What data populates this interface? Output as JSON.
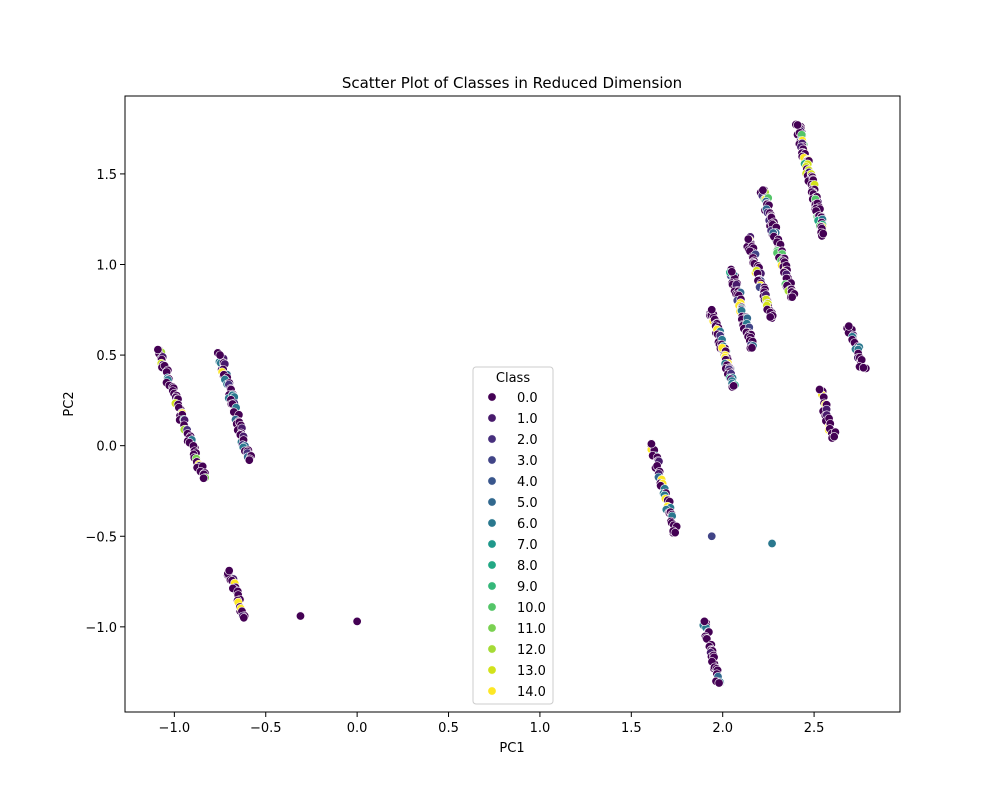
{
  "chart_data": {
    "type": "scatter",
    "title": "Scatter Plot of Classes in Reduced Dimension",
    "xlabel": "PC1",
    "ylabel": "PC2",
    "xlim": [
      -1.27,
      2.97
    ],
    "ylim": [
      -1.47,
      1.93
    ],
    "x_ticks": [
      -1.0,
      -0.5,
      0.0,
      0.5,
      1.0,
      1.5,
      2.0,
      2.5
    ],
    "x_tick_labels": [
      "−1.0",
      "−0.5",
      "0.0",
      "0.5",
      "1.0",
      "1.5",
      "2.0",
      "2.5"
    ],
    "y_ticks": [
      -1.0,
      -0.5,
      0.0,
      0.5,
      1.0,
      1.5
    ],
    "y_tick_labels": [
      "−1.0",
      "−0.5",
      "0.0",
      "0.5",
      "1.0",
      "1.5"
    ],
    "grid": false,
    "legend": {
      "title": "Class",
      "placement": "lower-center",
      "entries": [
        "0.0",
        "1.0",
        "2.0",
        "3.0",
        "4.0",
        "5.0",
        "6.0",
        "7.0",
        "8.0",
        "9.0",
        "10.0",
        "11.0",
        "12.0",
        "13.0",
        "14.0"
      ]
    },
    "palette": [
      "#440154",
      "#481a6c",
      "#472f7d",
      "#414487",
      "#39568c",
      "#31688e",
      "#2a788e",
      "#23888e",
      "#1f988b",
      "#22a884",
      "#35b779",
      "#54c568",
      "#7ad151",
      "#a5db36",
      "#d2e21b",
      "#fde725"
    ],
    "marker_edge_color": "#ffffff",
    "clusters": [
      {
        "x0": -1.09,
        "y0": 0.53,
        "x1": -0.84,
        "y1": -0.18,
        "classes": [
          0,
          1,
          2,
          6,
          7,
          11,
          12,
          13,
          14
        ],
        "n": 70
      },
      {
        "x0": -0.75,
        "y0": 0.5,
        "x1": -0.59,
        "y1": -0.08,
        "classes": [
          0,
          1,
          2,
          5,
          6,
          14
        ],
        "n": 60
      },
      {
        "x0": -0.7,
        "y0": -0.69,
        "x1": -0.62,
        "y1": -0.95,
        "classes": [
          0,
          1,
          6,
          14
        ],
        "n": 22
      },
      {
        "x0": 1.61,
        "y0": 0.01,
        "x1": 1.74,
        "y1": -0.48,
        "classes": [
          0,
          1,
          5,
          6,
          14
        ],
        "n": 45
      },
      {
        "x0": 1.9,
        "y0": -0.97,
        "x1": 1.98,
        "y1": -1.31,
        "classes": [
          0,
          1,
          5,
          6
        ],
        "n": 30
      },
      {
        "x0": 1.94,
        "y0": 0.75,
        "x1": 2.06,
        "y1": 0.33,
        "classes": [
          0,
          1,
          2,
          6,
          8,
          14
        ],
        "n": 70
      },
      {
        "x0": 2.05,
        "y0": 0.96,
        "x1": 2.16,
        "y1": 0.54,
        "classes": [
          0,
          1,
          3,
          5,
          6,
          8,
          14
        ],
        "n": 60
      },
      {
        "x0": 2.14,
        "y0": 1.14,
        "x1": 2.26,
        "y1": 0.71,
        "classes": [
          0,
          1,
          3,
          13,
          14
        ],
        "n": 60
      },
      {
        "x0": 2.22,
        "y0": 1.41,
        "x1": 2.38,
        "y1": 0.82,
        "classes": [
          0,
          1,
          2,
          5,
          6,
          10,
          12,
          14
        ],
        "n": 80
      },
      {
        "x0": 2.41,
        "y0": 1.77,
        "x1": 2.55,
        "y1": 1.17,
        "classes": [
          0,
          1,
          3,
          6,
          8,
          10,
          13,
          14
        ],
        "n": 90
      },
      {
        "x0": 2.69,
        "y0": 0.66,
        "x1": 2.77,
        "y1": 0.43,
        "classes": [
          0,
          1,
          6
        ],
        "n": 25
      },
      {
        "x0": 2.53,
        "y0": 0.31,
        "x1": 2.61,
        "y1": 0.05,
        "classes": [
          0,
          1,
          14
        ],
        "n": 22
      }
    ],
    "points": [
      {
        "x": -0.31,
        "y": -0.94,
        "class": 0
      },
      {
        "x": 0.0,
        "y": -0.97,
        "class": 0
      },
      {
        "x": 1.94,
        "y": -0.5,
        "class": 3
      },
      {
        "x": 2.27,
        "y": -0.54,
        "class": 6
      }
    ]
  }
}
